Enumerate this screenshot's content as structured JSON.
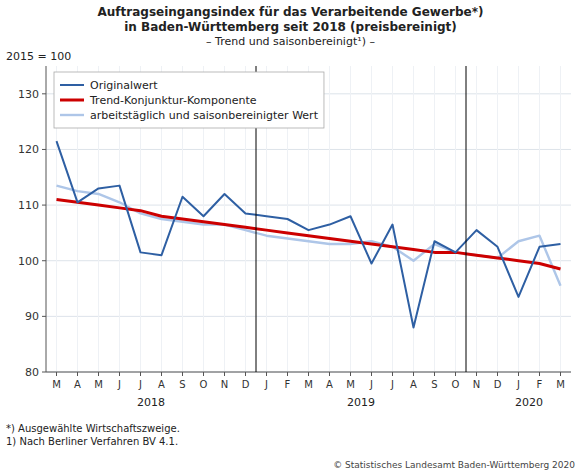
{
  "chart_data": {
    "type": "line",
    "title": "Auftragseingangsindex für das Verarbeitende Gewerbe*)",
    "subtitle": "in Baden-Württemberg seit 2018 (preisbereinigt)",
    "annotations": [
      "– Trend und saisonbereinigt¹) –"
    ],
    "y_label": "2015 = 100",
    "footnotes": [
      "*) Ausgewählte Wirtschaftszweige.",
      "1) Nach Berliner Verfahren BV 4.1."
    ],
    "source": "© Statistisches Landesamt Baden-Württemberg 2020",
    "categories": [
      "M",
      "A",
      "M",
      "J",
      "J",
      "A",
      "S",
      "O",
      "N",
      "D",
      "J",
      "F",
      "M",
      "A",
      "M",
      "J",
      "J",
      "A",
      "S",
      "O",
      "N",
      "D",
      "J",
      "F",
      "M"
    ],
    "x_groups": [
      {
        "label": "2018",
        "x": 4.5
      },
      {
        "label": "2019",
        "x": 14.5
      },
      {
        "label": "2020",
        "x": 22.5
      }
    ],
    "x_dividers": [
      9.5,
      19.5
    ],
    "series": [
      {
        "name": "Originalwert",
        "color": "#2e5fa3",
        "values": [
          121.5,
          110.5,
          113.0,
          113.5,
          101.5,
          101.0,
          111.5,
          108.0,
          112.0,
          108.5,
          108.0,
          107.5,
          105.5,
          106.5,
          108.0,
          99.5,
          106.5,
          88.0,
          103.5,
          101.5,
          105.5,
          102.5,
          93.5,
          102.5,
          103.0
        ]
      },
      {
        "name": "Trend-Konjunktur-Komponente",
        "color": "#cc0000",
        "values": [
          111.0,
          110.5,
          110.0,
          109.5,
          109.0,
          108.0,
          107.5,
          107.0,
          106.5,
          106.0,
          105.5,
          105.0,
          104.5,
          104.0,
          103.5,
          103.0,
          102.5,
          102.0,
          101.5,
          101.5,
          101.0,
          100.5,
          100.0,
          99.5,
          98.5
        ]
      },
      {
        "name": "arbeitstäglich und saisonbereinigter Wert",
        "color": "#aec6e8",
        "values": [
          113.5,
          112.5,
          112.0,
          110.5,
          108.5,
          107.5,
          107.0,
          106.5,
          106.5,
          105.5,
          104.5,
          104.0,
          103.5,
          103.0,
          103.0,
          103.5,
          102.5,
          100.0,
          103.0,
          101.5,
          101.0,
          100.5,
          103.5,
          104.5,
          95.5
        ]
      }
    ],
    "ylim": [
      80,
      135
    ],
    "yticks": [
      80,
      90,
      100,
      110,
      120,
      130
    ],
    "grid": true,
    "legend": "upper left"
  }
}
